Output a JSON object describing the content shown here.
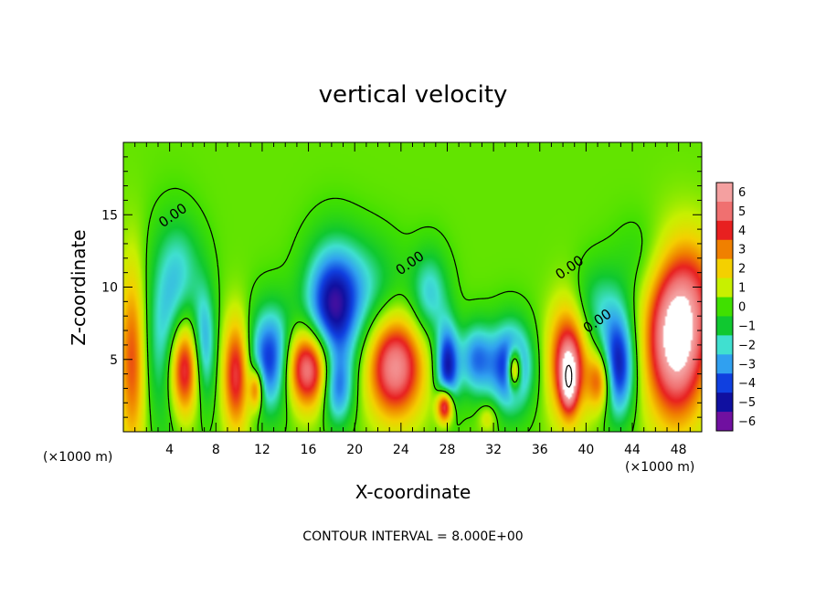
{
  "chart_data": {
    "type": "heatmap",
    "title": "vertical velocity",
    "xlabel": "X-coordinate",
    "ylabel": "Z-coordinate",
    "x_unit": "(×1000 m)",
    "xlim": [
      0,
      50
    ],
    "ylim": [
      0,
      20
    ],
    "x_ticks": [
      4,
      8,
      12,
      16,
      20,
      24,
      28,
      32,
      36,
      40,
      44,
      48
    ],
    "y_ticks": [
      5,
      10,
      15
    ],
    "colorbar": {
      "levels": [
        6,
        5,
        4,
        3,
        2,
        1,
        0,
        -1,
        -2,
        -3,
        -4,
        -5,
        -6
      ],
      "colors": [
        "#f4a0a0",
        "#f07070",
        "#e82020",
        "#f08000",
        "#f4d000",
        "#c8f000",
        "#40e000",
        "#10c830",
        "#40e0d0",
        "#30a0f0",
        "#1040e0",
        "#1010a0",
        "#7010a0"
      ]
    },
    "contour_labels": [
      {
        "text": "0.00",
        "x": 4.5,
        "z": 14.7
      },
      {
        "text": "0.00",
        "x": 25.0,
        "z": 11.4
      },
      {
        "text": "0.00",
        "x": 38.8,
        "z": 11.1
      },
      {
        "text": "0.00",
        "x": 41.2,
        "z": 7.4
      }
    ],
    "footer": "CONTOUR INTERVAL = 8.000E+00",
    "features": [
      {
        "x": 0.8,
        "z": 5.0,
        "rx": 1.2,
        "rz": 6.5,
        "w": 3.5
      },
      {
        "x": 5.2,
        "z": 4.5,
        "rx": 1.4,
        "rz": 3.5,
        "w": 6.5
      },
      {
        "x": 4.2,
        "z": 6.5,
        "rx": 2.2,
        "rz": 6.0,
        "w": -3.5
      },
      {
        "x": 7.0,
        "z": 6.0,
        "rx": 1.0,
        "rz": 4.0,
        "w": -3.0
      },
      {
        "x": 9.8,
        "z": 4.0,
        "rx": 1.2,
        "rz": 3.8,
        "w": 4.5
      },
      {
        "x": 11.5,
        "z": 3.0,
        "rx": 0.6,
        "rz": 1.5,
        "w": 4.0
      },
      {
        "x": 12.8,
        "z": 5.0,
        "rx": 2.0,
        "rz": 3.5,
        "w": -5.0
      },
      {
        "x": 16.0,
        "z": 4.5,
        "rx": 2.2,
        "rz": 2.8,
        "w": 6.5
      },
      {
        "x": 18.0,
        "z": 8.0,
        "rx": 2.3,
        "rz": 4.5,
        "w": -5.0
      },
      {
        "x": 18.5,
        "z": 3.0,
        "rx": 1.3,
        "rz": 2.5,
        "w": -3.5
      },
      {
        "x": 23.5,
        "z": 4.5,
        "rx": 2.4,
        "rz": 3.5,
        "w": 5.5
      },
      {
        "x": 20.5,
        "z": 10.0,
        "rx": 3.5,
        "rz": 3.5,
        "w": -2.0
      },
      {
        "x": 26.5,
        "z": 9.5,
        "rx": 1.6,
        "rz": 3.0,
        "w": -2.5
      },
      {
        "x": 28.0,
        "z": 4.5,
        "rx": 1.0,
        "rz": 3.0,
        "w": -5.0
      },
      {
        "x": 27.8,
        "z": 1.8,
        "rx": 0.7,
        "rz": 1.2,
        "w": 6.0
      },
      {
        "x": 30.5,
        "z": 5.0,
        "rx": 1.5,
        "rz": 2.5,
        "w": -3.5
      },
      {
        "x": 33.5,
        "z": 4.5,
        "rx": 1.8,
        "rz": 3.0,
        "w": -5.0
      },
      {
        "x": 33.8,
        "z": 4.3,
        "rx": 0.6,
        "rz": 1.4,
        "w": 6.0
      },
      {
        "x": 31.5,
        "z": 1.0,
        "rx": 0.8,
        "rz": 1.0,
        "w": 1.5
      },
      {
        "x": 38.5,
        "z": 5.0,
        "rx": 1.7,
        "rz": 4.0,
        "w": 5.0
      },
      {
        "x": 38.5,
        "z": 3.5,
        "rx": 0.7,
        "rz": 2.0,
        "w": 4.0
      },
      {
        "x": 41.2,
        "z": 3.5,
        "rx": 1.0,
        "rz": 2.0,
        "w": 3.5
      },
      {
        "x": 42.8,
        "z": 4.5,
        "rx": 1.4,
        "rz": 3.5,
        "w": -5.0
      },
      {
        "x": 41.0,
        "z": 8.5,
        "rx": 2.5,
        "rz": 3.0,
        "w": -2.0
      },
      {
        "x": 47.8,
        "z": 6.5,
        "rx": 2.6,
        "rz": 5.5,
        "w": 7.0
      },
      {
        "x": 50.0,
        "z": 10.0,
        "rx": 2.5,
        "rz": 4.0,
        "w": 1.5
      },
      {
        "x": 5.0,
        "z": 12.0,
        "rx": 2.0,
        "rz": 3.0,
        "w": -1.0
      },
      {
        "x": 45.0,
        "z": 12.0,
        "rx": 2.5,
        "rz": 3.0,
        "w": -0.8
      }
    ]
  }
}
